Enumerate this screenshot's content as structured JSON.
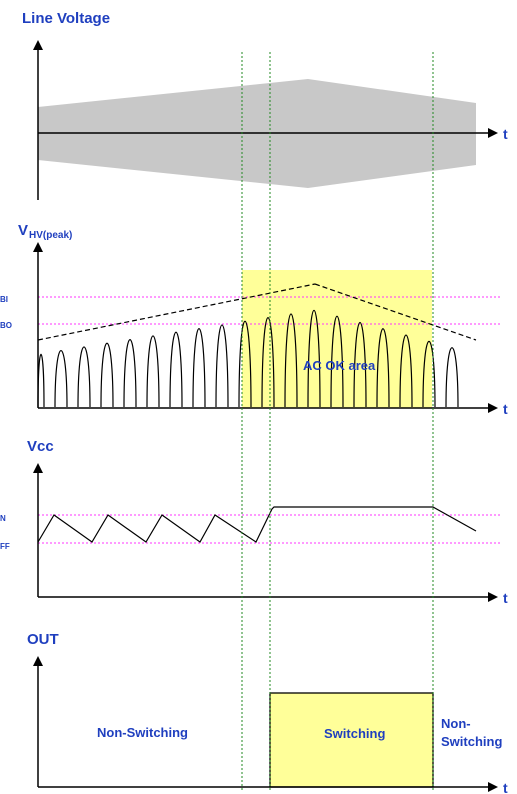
{
  "panels": {
    "line_voltage": {
      "title": "Line Voltage",
      "axis": "t"
    },
    "vhv": {
      "title_main": "V",
      "title_sub": "HV(peak)",
      "axis": "t",
      "level_upper": "BI",
      "level_lower": "BO",
      "region_label": "AC OK area"
    },
    "vcc": {
      "title": "Vcc",
      "axis": "t",
      "level_upper": "N",
      "level_lower": "FF"
    },
    "out": {
      "title": "OUT",
      "axis": "t",
      "left_label": "Non-Switching",
      "mid_label": "Switching",
      "right_label_line1": "Non-",
      "right_label_line2": "Switching"
    }
  },
  "colors": {
    "label": "#1f3fbf",
    "envelope": "#c8c8c8",
    "highlight": "#ffff99",
    "threshold": "#ff33ff",
    "marker": "#228822",
    "ink": "#000000"
  }
}
